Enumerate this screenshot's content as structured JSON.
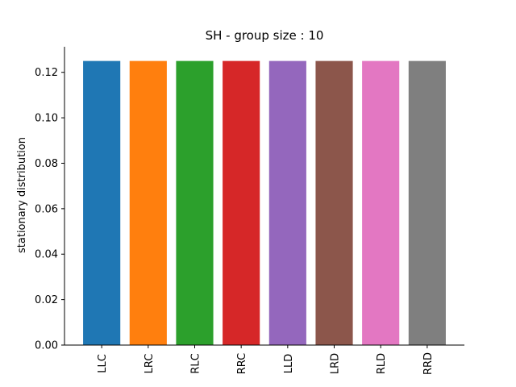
{
  "chart_data": {
    "type": "bar",
    "title": "SH - group size : 10",
    "xlabel": "",
    "ylabel": "stationary distribution",
    "categories": [
      "LLC",
      "LRC",
      "RLC",
      "RRC",
      "LLD",
      "LRD",
      "RLD",
      "RRD"
    ],
    "values": [
      0.125,
      0.125,
      0.125,
      0.125,
      0.125,
      0.125,
      0.125,
      0.125
    ],
    "colors": [
      "#1f77b4",
      "#ff7f0e",
      "#2ca02c",
      "#d62728",
      "#9467bd",
      "#8c564b",
      "#e377c2",
      "#7f7f7f"
    ],
    "ylim": [
      0,
      0.13125
    ],
    "yticks": [
      "0.00",
      "0.02",
      "0.04",
      "0.06",
      "0.08",
      "0.10",
      "0.12"
    ],
    "grid": false,
    "legend": "none"
  }
}
